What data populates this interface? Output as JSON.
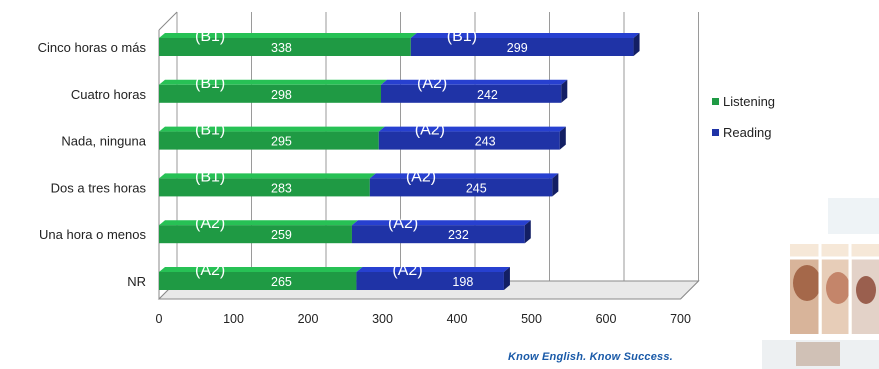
{
  "chart_data": {
    "type": "bar",
    "orientation": "horizontal",
    "stacked": true,
    "categories": [
      "Cinco horas o más",
      "Cuatro horas",
      "Nada, ninguna",
      "Dos a tres horas",
      "Una hora o menos",
      "NR"
    ],
    "series": [
      {
        "name": "Listening",
        "color": "#1f9a44",
        "values": [
          338,
          298,
          295,
          283,
          259,
          265
        ],
        "levels": [
          "(B1)",
          "(B1)",
          "(B1)",
          "(B1)",
          "(A2)",
          "(A2)"
        ]
      },
      {
        "name": "Reading",
        "color": "#1f33a6",
        "values": [
          299,
          242,
          243,
          245,
          232,
          198
        ],
        "levels": [
          "(B1)",
          "(A2)",
          "(A2)",
          "(A2)",
          "(A2)",
          "(A2)"
        ]
      }
    ],
    "xlim": [
      0,
      700
    ],
    "xticks": [
      0,
      100,
      200,
      300,
      400,
      500,
      600,
      700
    ],
    "grid": true,
    "legend_position": "right"
  },
  "footer": {
    "tagline": "Know English. Know Success."
  }
}
